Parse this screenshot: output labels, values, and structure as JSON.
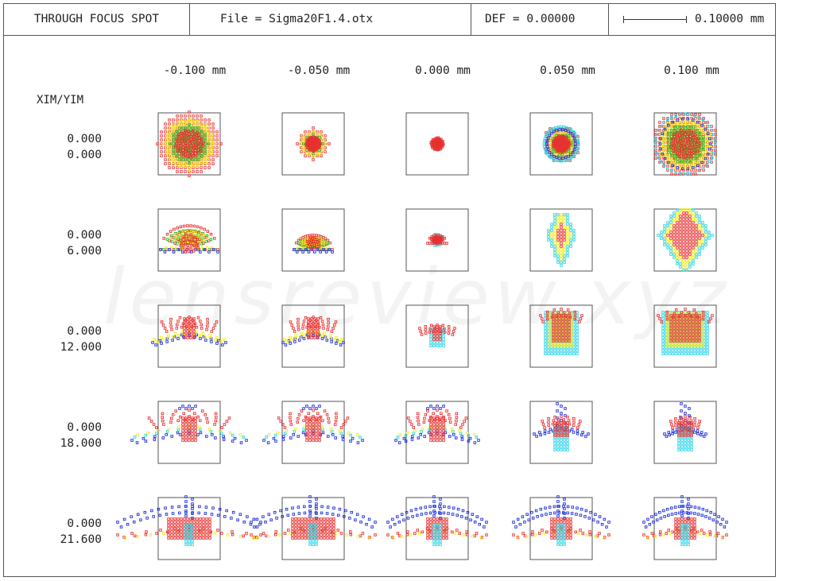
{
  "header": {
    "title": "THROUGH FOCUS SPOT",
    "file": "File = Sigma20F1.4.otx",
    "def": "DEF = 0.00000",
    "scale_label": "0.10000  mm"
  },
  "watermark": "lensreview.xyz",
  "corner_label": "XIM/YIM",
  "columns": [
    "-0.100  mm",
    "-0.050  mm",
    "0.000  mm",
    "0.050  mm",
    "0.100  mm"
  ],
  "rows": [
    {
      "xim": "0.000",
      "yim": "0.000"
    },
    {
      "xim": "0.000",
      "yim": "6.000"
    },
    {
      "xim": "0.000",
      "yim": "12.000"
    },
    {
      "xim": "0.000",
      "yim": "18.000"
    },
    {
      "xim": "0.000",
      "yim": "21.600"
    }
  ],
  "colors": {
    "wavelengths": [
      "#1f2fd8",
      "#2ad4e6",
      "#f2ec1a",
      "#30b030",
      "#e83030"
    ],
    "frame": "#555555"
  },
  "chart_data": {
    "type": "spot_diagram_grid",
    "defocus_mm": [
      -0.1,
      -0.05,
      0.0,
      0.05,
      0.1
    ],
    "field_y_mm": [
      0.0,
      6.0,
      12.0,
      18.0,
      21.6
    ],
    "field_x_mm": [
      0.0,
      0.0,
      0.0,
      0.0,
      0.0
    ],
    "scale_bar_mm": 0.1,
    "wavelength_colors": [
      "blue",
      "cyan",
      "yellow",
      "green",
      "red"
    ]
  }
}
